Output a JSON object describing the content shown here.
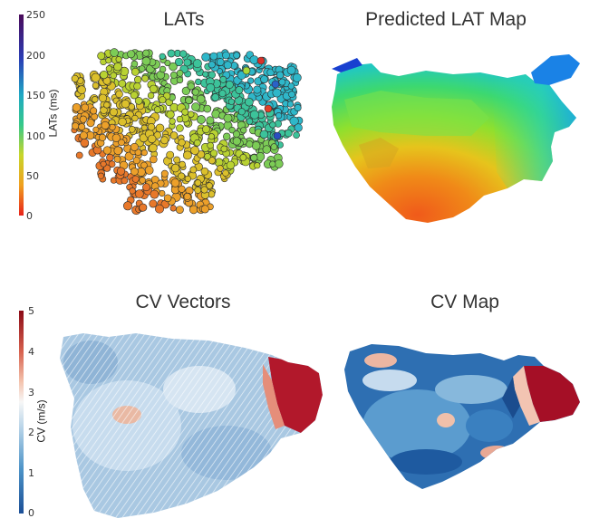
{
  "panels": {
    "lats": {
      "title": "LATs"
    },
    "predicted": {
      "title": "Predicted LAT Map"
    },
    "cv_vectors": {
      "title": "CV Vectors"
    },
    "cv_map": {
      "title": "CV Map"
    }
  },
  "colorbars": {
    "lat": {
      "label": "LATs (ms)",
      "ticks": [
        "250",
        "200",
        "150",
        "100",
        "50",
        "0"
      ],
      "stops": [
        "#4b0a5a",
        "#2a3db5",
        "#1fa8c4",
        "#36c98a",
        "#c8d62a",
        "#f0a020",
        "#e8221a"
      ]
    },
    "cv": {
      "label": "CV (m/s)",
      "ticks": [
        "5",
        "4",
        "3",
        "2",
        "1",
        "0"
      ],
      "stops": [
        "#8b0a16",
        "#d6604d",
        "#f4c3ad",
        "#f7f7f7",
        "#b6d3e8",
        "#4d94c8",
        "#1c4f97"
      ]
    }
  }
}
